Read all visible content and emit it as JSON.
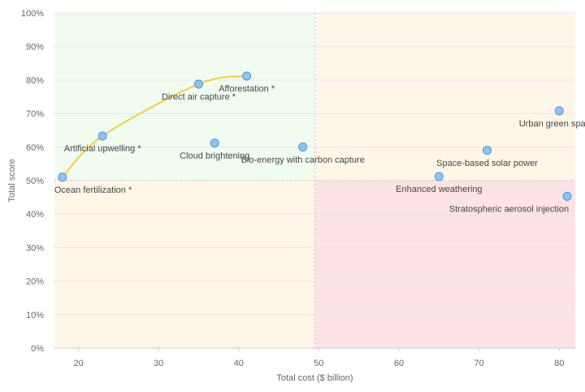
{
  "chart_data": {
    "type": "scatter",
    "title": "",
    "xlabel": "Total cost ($ billion)",
    "ylabel": "Total score",
    "xlim": [
      17,
      82
    ],
    "ylim": [
      0,
      100
    ],
    "x_ticks": [
      20,
      30,
      40,
      50,
      60,
      70,
      80
    ],
    "y_ticks": [
      0,
      10,
      20,
      30,
      40,
      50,
      60,
      70,
      80,
      90,
      100
    ],
    "y_tick_suffix": "%",
    "grid": true,
    "thresholds": {
      "x": 49.5,
      "y": 50
    },
    "quadrant_colors": {
      "top_left": "#f1fcf1",
      "top_right": "#fff6e8",
      "bottom_left": "#fff6e8",
      "bottom_right": "#fde3e6"
    },
    "point_color": "#8ec4f5",
    "point_stroke": "#4f94db",
    "frontier_color": "#f5cf3a",
    "points": [
      {
        "label": "Ocean fertilization *",
        "x": 18,
        "y": 51,
        "label_pos": "below-right"
      },
      {
        "label": "Artificial upwelling *",
        "x": 23,
        "y": 63.3,
        "label_pos": "below-center"
      },
      {
        "label": "Direct air capture *",
        "x": 35,
        "y": 78.8,
        "label_pos": "below-center"
      },
      {
        "label": "Afforestation *",
        "x": 41,
        "y": 81.2,
        "label_pos": "below-center"
      },
      {
        "label": "Cloud brightening",
        "x": 37,
        "y": 61.2,
        "label_pos": "below-center"
      },
      {
        "label": "Bio-energy with carbon capture",
        "x": 48,
        "y": 60,
        "label_pos": "below-center"
      },
      {
        "label": "Enhanced weathering",
        "x": 65,
        "y": 51.2,
        "label_pos": "below-center"
      },
      {
        "label": "Space-based solar power",
        "x": 71,
        "y": 59,
        "label_pos": "below-center"
      },
      {
        "label": "Urban green spaces",
        "x": 80,
        "y": 70.8,
        "label_pos": "below-center"
      },
      {
        "label": "Stratospheric aerosol injection",
        "x": 81,
        "y": 45.3,
        "label_pos": "below-left"
      }
    ],
    "frontier": [
      {
        "x": 18,
        "y": 51
      },
      {
        "x": 23,
        "y": 63.3
      },
      {
        "x": 35,
        "y": 78.8
      },
      {
        "x": 41,
        "y": 81.2
      }
    ]
  }
}
